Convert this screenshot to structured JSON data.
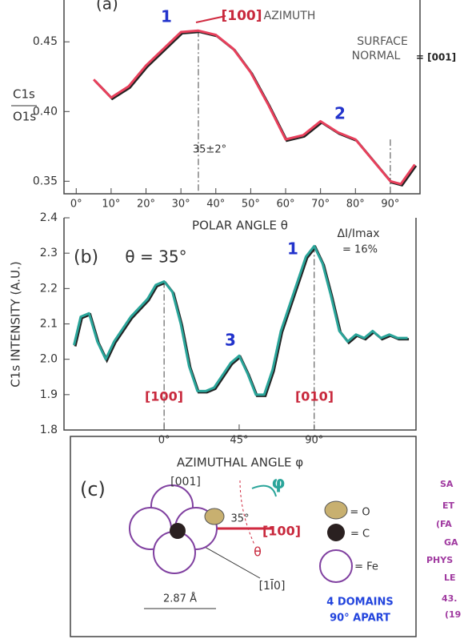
{
  "chart_data": [
    {
      "type": "line",
      "panel_label": "(a)",
      "y_label_top": "C1s",
      "y_label_bottom": "O1s",
      "x_label": "POLAR ANGLE θ",
      "x": [
        5,
        10,
        15,
        20,
        25,
        30,
        35,
        40,
        45,
        50,
        55,
        60,
        65,
        70,
        75,
        80,
        85,
        90,
        93,
        97
      ],
      "series": [
        {
          "color": "#e8405c",
          "values": [
            0.423,
            0.41,
            0.418,
            0.433,
            0.445,
            0.457,
            0.458,
            0.455,
            0.445,
            0.428,
            0.405,
            0.38,
            0.383,
            0.393,
            0.385,
            0.38,
            0.365,
            0.35,
            0.348,
            0.362
          ]
        }
      ],
      "xlim": [
        -3.5,
        98.5
      ],
      "ylim": [
        0.341,
        0.48
      ],
      "xticks": [
        {
          "value": 0,
          "label": "0°"
        },
        {
          "value": 10,
          "label": "10°"
        },
        {
          "value": 20,
          "label": "20°"
        },
        {
          "value": 30,
          "label": "30°"
        },
        {
          "value": 40,
          "label": "40°"
        },
        {
          "value": 50,
          "label": "50°"
        },
        {
          "value": 60,
          "label": "60°"
        },
        {
          "value": 70,
          "label": "70°"
        },
        {
          "value": 80,
          "label": "80°"
        },
        {
          "value": 90,
          "label": "90°"
        }
      ],
      "yticks": [
        0.35,
        {
          "value": 0.4,
          "label": "0.40"
        },
        0.45
      ],
      "annotations": [
        "1",
        "[100]",
        "AZIMUTH",
        "SURFACE",
        "NORMAL",
        "= [001]",
        "35±2°",
        "2"
      ]
    },
    {
      "type": "line",
      "panel_label": "(b)",
      "y_label": "C1s INTENSITY (A.U.)",
      "x_label": "AZIMUTHAL ANGLE φ",
      "x": [
        -54,
        -50,
        -45,
        -40,
        -35,
        -30,
        -20,
        -10,
        -5,
        0,
        5,
        10,
        15,
        20,
        25,
        30,
        40,
        45,
        50,
        55,
        60,
        65,
        70,
        80,
        85,
        90,
        95,
        100,
        105,
        110,
        115,
        120,
        125,
        130,
        135,
        140,
        146
      ],
      "series": [
        {
          "color": "#2aa59a",
          "values": [
            2.04,
            2.12,
            2.13,
            2.05,
            2.0,
            2.05,
            2.12,
            2.17,
            2.21,
            2.22,
            2.19,
            2.1,
            1.98,
            1.91,
            1.91,
            1.92,
            1.99,
            2.01,
            1.96,
            1.9,
            1.9,
            1.97,
            2.08,
            2.22,
            2.29,
            2.32,
            2.27,
            2.18,
            2.08,
            2.05,
            2.07,
            2.06,
            2.08,
            2.06,
            2.07,
            2.06,
            2.06
          ]
        }
      ],
      "xlim": [
        -60,
        151
      ],
      "ylim": [
        1.8,
        2.4
      ],
      "xticks": [
        {
          "value": 0,
          "label": "0°"
        },
        {
          "value": 45,
          "label": "45°"
        },
        {
          "value": 90,
          "label": "90°"
        }
      ],
      "yticks": [
        1.8,
        1.9,
        {
          "value": 2,
          "label": "2.0"
        },
        2.1,
        2.2,
        2.3,
        2.4
      ],
      "annotations": [
        "θ = 35°",
        "ΔI/Imax",
        "= 16%",
        "1",
        "3",
        "[100]",
        "[010]"
      ]
    }
  ],
  "diagram": {
    "panel_label": "(c)",
    "labels": [
      "[001]",
      "35°",
      "[100]",
      "θ",
      "φ",
      "[1Ī0]",
      "2.87 Å",
      "= O",
      "= C",
      "= Fe",
      "4 DOMAINS",
      "90° APART"
    ],
    "handwritten": [
      "SA",
      "ET",
      "(FA",
      "GA",
      "PHYS",
      "LE",
      "43.",
      "(19"
    ]
  }
}
